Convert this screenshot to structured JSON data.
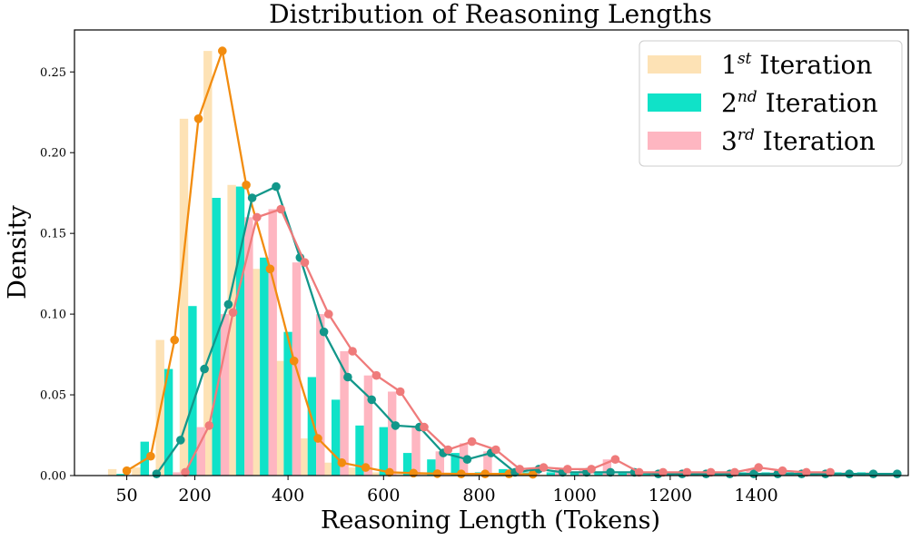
{
  "chart_data": {
    "type": "bar",
    "title": "Distribution of Reasoning Lengths",
    "xlabel": "Reasoning Length (Tokens)",
    "ylabel": "Density",
    "ylim": [
      0,
      0.276
    ],
    "yticks": [
      "0.00",
      "0.05",
      "0.10",
      "0.15",
      "0.20",
      "0.25"
    ],
    "xticks": [
      {
        "label": "50",
        "bin": 0.25
      },
      {
        "label": "200",
        "bin": 3.1
      },
      {
        "label": "400",
        "bin": 7.0
      },
      {
        "label": "600",
        "bin": 11.0
      },
      {
        "label": "800",
        "bin": 15.0
      },
      {
        "label": "1000",
        "bin": 19.0
      },
      {
        "label": "1200",
        "bin": 23.0
      },
      {
        "label": "1400",
        "bin": 26.6
      }
    ],
    "grid": false,
    "legend_position": "top-right",
    "bin_count": 32,
    "series": [
      {
        "name": "1st Iteration",
        "legend_base": "1",
        "legend_sup": "st",
        "legend_rest": " Iteration",
        "bar_color": "#fde2b5",
        "line_color": "#f28c0f",
        "values": [
          0.004,
          0.005,
          0.084,
          0.221,
          0.263,
          0.18,
          0.128,
          0.071,
          0.023,
          0.008,
          0.005,
          0.002,
          0.0015,
          0.0012,
          0.001,
          0.001,
          0.001,
          0.0008,
          0.0006,
          0.0005,
          0.0005,
          0.0004,
          0.0004,
          0.0004,
          0.0003,
          0.0003,
          0.0003,
          0.0003,
          0.0002,
          0.0002,
          0.0002,
          0.0002
        ],
        "line_values": [
          0.003,
          0.012,
          0.084,
          0.221,
          0.263,
          0.18,
          0.128,
          0.071,
          0.023,
          0.008,
          0.005,
          0.002,
          0.0015,
          0.0012,
          0.001,
          0.001,
          0.001,
          0.0008
        ],
        "line_start_bin": 0.25
      },
      {
        "name": "2nd Iteration",
        "legend_base": "2",
        "legend_sup": "nd",
        "legend_rest": " Iteration",
        "bar_color": "#10e2c8",
        "line_color": "#12978a",
        "values": [
          0.001,
          0.021,
          0.066,
          0.105,
          0.172,
          0.179,
          0.135,
          0.089,
          0.061,
          0.047,
          0.031,
          0.03,
          0.014,
          0.01,
          0.014,
          0.002,
          0.004,
          0.002,
          0.002,
          0.002,
          0.002,
          0.002,
          0.002,
          0.002,
          0.002,
          0.002,
          0.002,
          0.002,
          0.002,
          0.002,
          0.002,
          0.002
        ],
        "line_values": [
          0.001,
          0.022,
          0.066,
          0.106,
          0.172,
          0.179,
          0.135,
          0.089,
          0.061,
          0.047,
          0.031,
          0.03,
          0.014,
          0.01,
          0.014,
          0.002,
          0.004,
          0.002,
          0.002,
          0.002,
          0.002,
          0.001,
          0.001,
          0.001,
          0.001,
          0.001,
          0.001,
          0.001,
          0.001,
          0.001,
          0.001,
          0.001
        ],
        "line_start_bin": 1.5
      },
      {
        "name": "3rd Iteration",
        "legend_base": "3",
        "legend_sup": "rd",
        "legend_rest": " Iteration",
        "bar_color": "#feb6c1",
        "line_color": "#ef7b7b",
        "values": [
          0.0,
          0.0,
          0.002,
          0.03,
          0.1,
          0.16,
          0.165,
          0.132,
          0.1,
          0.077,
          0.062,
          0.052,
          0.03,
          0.015,
          0.02,
          0.015,
          0.004,
          0.005,
          0.004,
          0.004,
          0.01,
          0.002,
          0.002,
          0.002,
          0.002,
          0.002,
          0.004,
          0.002,
          0.002,
          0.002,
          0.002,
          0.002
        ],
        "line_values": [
          0.002,
          0.031,
          0.101,
          0.16,
          0.165,
          0.132,
          0.1,
          0.077,
          0.062,
          0.052,
          0.03,
          0.016,
          0.021,
          0.016,
          0.004,
          0.005,
          0.004,
          0.004,
          0.01,
          0.002,
          0.002,
          0.002,
          0.002,
          0.002,
          0.005,
          0.003,
          0.002,
          0.002
        ],
        "line_start_bin": 2.7
      }
    ]
  }
}
